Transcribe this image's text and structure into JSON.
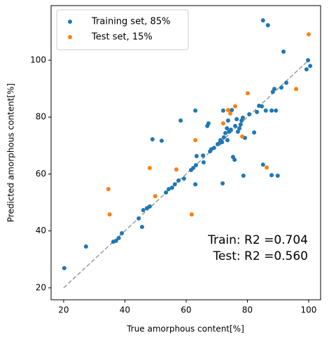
{
  "chart_data": {
    "type": "scatter",
    "xlabel": "True amorphous content[%]",
    "ylabel": "Predicted amorphous content[%]",
    "xlim": [
      15.9,
      103.9
    ],
    "ylim": [
      15.8,
      119.2
    ],
    "xticks": [
      20,
      40,
      60,
      80,
      100
    ],
    "yticks": [
      20,
      40,
      60,
      80,
      100
    ],
    "reference_line": {
      "x": [
        20,
        100
      ],
      "y": [
        20,
        100
      ],
      "color": "#999999"
    },
    "legend": "upper left",
    "annotations": [
      "Train: R2 =0.704",
      "Test: R2 =0.560"
    ],
    "series": [
      {
        "name": "Training set, 85%",
        "color": "#1f77b4",
        "x": [
          20.2,
          27.3,
          36.2,
          37.1,
          38,
          39,
          44.5,
          45.6,
          46,
          47.2,
          48.1,
          49,
          52,
          53.4,
          54.3,
          55.4,
          56.3,
          57.5,
          58.2,
          59.3,
          61.6,
          62.3,
          63,
          63.2,
          63,
          63.4,
          65.5,
          65.7,
          66.9,
          67.3,
          67.8,
          68.2,
          69.1,
          70.3,
          70.7,
          71.2,
          71.7,
          71.9,
          72.1,
          72.3,
          72.8,
          73.3,
          73.5,
          73.7,
          74,
          74.6,
          74.9,
          75.3,
          75.8,
          76,
          76.5,
          76.9,
          77.4,
          77.8,
          78.1,
          78.5,
          78.7,
          79.2,
          80.6,
          82.2,
          83.1,
          83.8,
          85.1,
          84.7,
          85.1,
          86,
          86.7,
          87.9,
          87.9,
          88.3,
          88.8,
          89.3,
          89.9,
          91.1,
          91.8,
          92.7,
          99.3,
          99.8,
          100.5
        ],
        "values": [
          26.9,
          34.5,
          36.2,
          36.5,
          37.5,
          39.2,
          44.4,
          41.4,
          47.3,
          48,
          48.6,
          72.2,
          71.7,
          53.5,
          54.7,
          55.2,
          56.4,
          57.7,
          78.8,
          58.4,
          61.4,
          62.1,
          82.3,
          63.1,
          56.4,
          66.3,
          66.5,
          64.1,
          76.9,
          77.8,
          68,
          68.7,
          69.2,
          70.5,
          70.7,
          71.9,
          71.2,
          56.7,
          82.3,
          72.9,
          74.4,
          76.1,
          71.9,
          78.8,
          74.9,
          75.6,
          82.5,
          66,
          65,
          76.9,
          79.3,
          74.9,
          76.1,
          77.4,
          78.8,
          79.8,
          59.4,
          72.7,
          81,
          74.6,
          81.8,
          84,
          114,
          83.8,
          63.3,
          82.3,
          112.3,
          82.3,
          59.6,
          88.9,
          89.9,
          82.3,
          59.4,
          90.4,
          103,
          92.1,
          96.8,
          100,
          98
        ]
      },
      {
        "name": "Test set, 15%",
        "color": "#ff7f0e",
        "x": [
          100,
          34.6,
          35,
          48.1,
          49.9,
          56.8,
          61.8,
          63,
          72.1,
          73.7,
          74.4,
          76,
          78.3,
          80.1,
          86.3,
          95.9
        ],
        "values": [
          109.1,
          54.7,
          45.8,
          62.1,
          52.2,
          61.6,
          45.8,
          71.9,
          77.8,
          82.5,
          81.3,
          83.8,
          73.2,
          88.4,
          62.3,
          89.9
        ]
      }
    ]
  }
}
